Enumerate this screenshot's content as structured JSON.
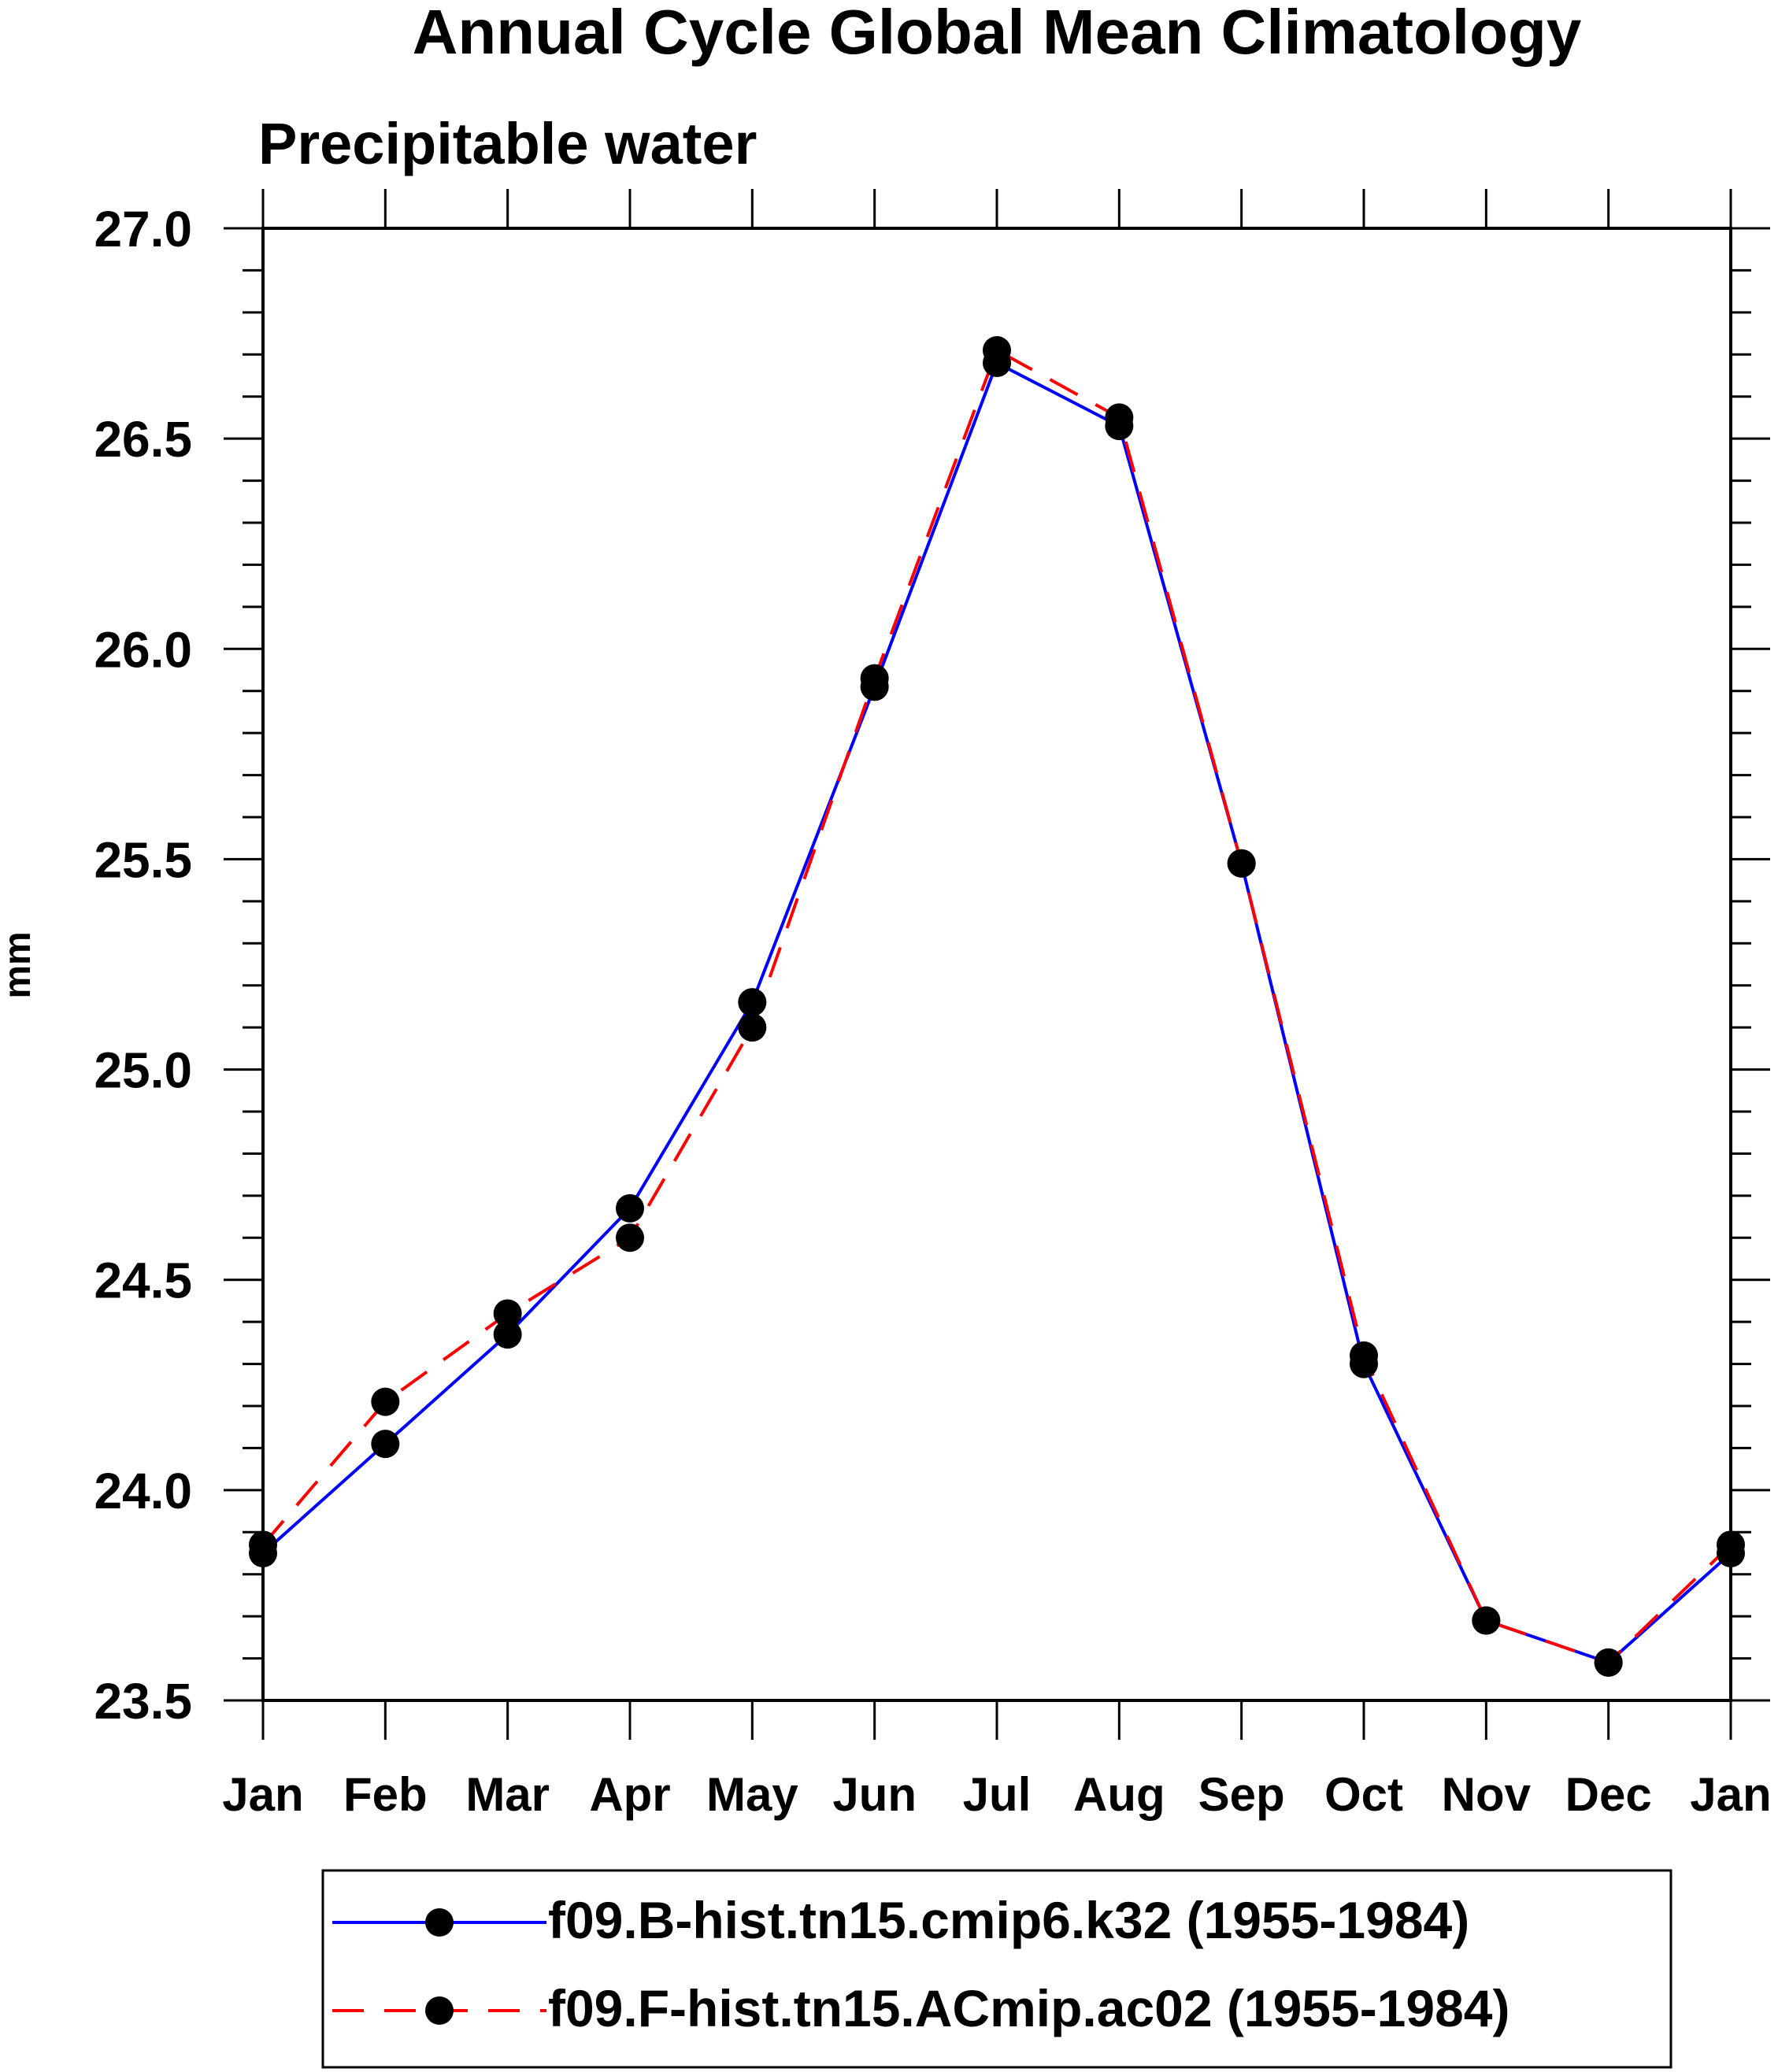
{
  "chart_data": {
    "type": "line",
    "title": "Annual Cycle Global Mean Climatology",
    "subtitle": "Precipitable water",
    "xlabel": "",
    "ylabel": "mm",
    "categories": [
      "Jan",
      "Feb",
      "Mar",
      "Apr",
      "May",
      "Jun",
      "Jul",
      "Aug",
      "Sep",
      "Oct",
      "Nov",
      "Dec",
      "Jan"
    ],
    "ylim": [
      23.5,
      27.0
    ],
    "yticks": [
      "23.5",
      "24.0",
      "24.5",
      "25.0",
      "25.5",
      "26.0",
      "26.5",
      "27.0"
    ],
    "grid": false,
    "legend_position": "bottom",
    "series": [
      {
        "name": "f09.B-hist.tn15.cmip6.k32 (1955-1984)",
        "color": "#0000ff",
        "line_style": "solid",
        "marker": "filled-circle",
        "values": [
          23.85,
          24.11,
          24.37,
          24.67,
          25.16,
          25.91,
          26.68,
          26.53,
          25.49,
          24.3,
          23.69,
          23.59,
          23.85
        ]
      },
      {
        "name": "f09.F-hist.tn15.ACmip.ac02 (1955-1984)",
        "color": "#ff0000",
        "line_style": "dashed",
        "marker": "filled-circle",
        "values": [
          23.87,
          24.21,
          24.42,
          24.6,
          25.1,
          25.93,
          26.71,
          26.55,
          25.49,
          24.32,
          23.69,
          23.59,
          23.87
        ]
      }
    ]
  }
}
